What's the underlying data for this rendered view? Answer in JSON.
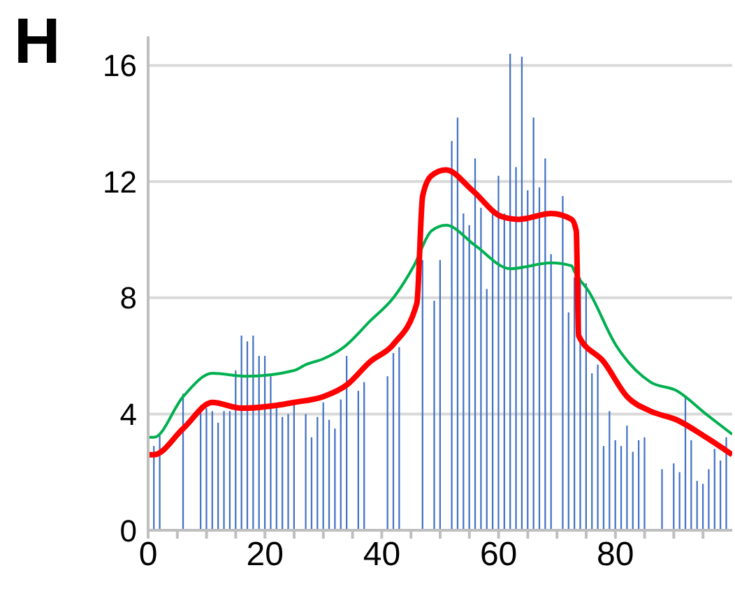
{
  "chart_data": {
    "type": "bar",
    "title": "H",
    "xlim": [
      0,
      100
    ],
    "xticks": [
      0,
      {
        "value": 5,
        "label": null
      },
      {
        "value": 10,
        "label": null
      },
      {
        "value": 15,
        "label": null
      },
      20,
      {
        "value": 25,
        "label": null
      },
      {
        "value": 30,
        "label": null
      },
      {
        "value": 35,
        "label": null
      },
      40,
      {
        "value": 45,
        "label": null
      },
      {
        "value": 50,
        "label": null
      },
      {
        "value": 55,
        "label": null
      },
      60,
      {
        "value": 65,
        "label": null
      },
      {
        "value": 70,
        "label": null
      },
      {
        "value": 75,
        "label": null
      },
      80,
      {
        "value": 85,
        "label": null
      },
      {
        "value": 90,
        "label": null
      },
      {
        "value": 95,
        "label": null
      }
    ],
    "ylim": [
      0,
      17
    ],
    "yticks": [
      0,
      4,
      8,
      12,
      16
    ],
    "grid": "y",
    "series": [
      {
        "color": "#4472c4",
        "x": [
          1,
          2,
          6,
          9,
          10,
          11,
          12,
          13,
          14,
          15,
          16,
          17,
          18,
          19,
          20,
          21,
          22,
          23,
          24,
          25,
          27,
          28,
          29,
          30,
          31,
          32,
          33,
          34,
          36,
          37,
          41,
          42,
          43,
          47,
          49,
          50,
          52,
          53,
          54,
          55,
          56,
          57,
          58,
          59,
          60,
          61,
          62,
          63,
          64,
          65,
          66,
          67,
          68,
          69,
          71,
          72,
          73,
          74,
          75,
          76,
          77,
          78,
          79,
          80,
          81,
          82,
          83,
          84,
          85,
          88,
          90,
          91,
          92,
          93,
          94,
          95,
          96,
          97,
          98,
          99
        ],
        "values": [
          2.9,
          3.3,
          4.7,
          4.3,
          4.2,
          4.1,
          3.7,
          4.1,
          4.1,
          5.5,
          6.7,
          6.5,
          6.7,
          6.0,
          6.0,
          5.3,
          4.2,
          3.9,
          4.0,
          4.3,
          4.0,
          3.2,
          3.9,
          4.4,
          3.8,
          3.5,
          4.5,
          6.0,
          4.8,
          5.1,
          5.3,
          6.1,
          6.3,
          9.3,
          7.9,
          9.3,
          13.4,
          14.2,
          10.9,
          10.5,
          12.8,
          11.1,
          8.3,
          10.9,
          12.2,
          10.9,
          16.4,
          12.5,
          16.3,
          11.7,
          14.2,
          11.8,
          12.8,
          9.5,
          11.5,
          7.5,
          8.7,
          8.7,
          8.5,
          5.4,
          5.7,
          2.9,
          4.1,
          3.1,
          2.9,
          3.6,
          2.7,
          3.1,
          3.2,
          2.1,
          2.3,
          2.0,
          4.6,
          3.1,
          1.7,
          1.6,
          2.1,
          2.8,
          2.4,
          3.2
        ]
      },
      {
        "type": "line",
        "color": "#00b050",
        "x": [
          0,
          1,
          6,
          11,
          17,
          25,
          27,
          30,
          33.5,
          38,
          42,
          45.5,
          48.5,
          51,
          56,
          62,
          69,
          72.5,
          73,
          75.5,
          80,
          86,
          90.5,
          95.5,
          100
        ],
        "values": [
          3.2,
          3.2,
          4.6,
          5.4,
          5.3,
          5.5,
          5.7,
          5.9,
          6.3,
          7.2,
          8.0,
          9.1,
          10.3,
          10.5,
          9.8,
          9.0,
          9.2,
          9.1,
          8.9,
          8.2,
          6.4,
          5.1,
          4.8,
          4.0,
          3.3
        ]
      },
      {
        "type": "line",
        "color": "#ff0000",
        "x": [
          0,
          1,
          6,
          11,
          16,
          22,
          25,
          30,
          34,
          38,
          42,
          46,
          47,
          48.5,
          51,
          55.5,
          60.5,
          63.5,
          69,
          72.5,
          73.3,
          73.7,
          78,
          82,
          86,
          90.5,
          95.5,
          100
        ],
        "values": [
          2.6,
          2.6,
          3.5,
          4.4,
          4.2,
          4.3,
          4.4,
          4.6,
          5.0,
          5.8,
          6.4,
          7.8,
          11.5,
          12.2,
          12.4,
          11.7,
          10.8,
          10.7,
          10.9,
          10.7,
          10.3,
          6.7,
          5.8,
          4.6,
          4.1,
          3.8,
          3.2,
          2.6
        ]
      }
    ]
  }
}
